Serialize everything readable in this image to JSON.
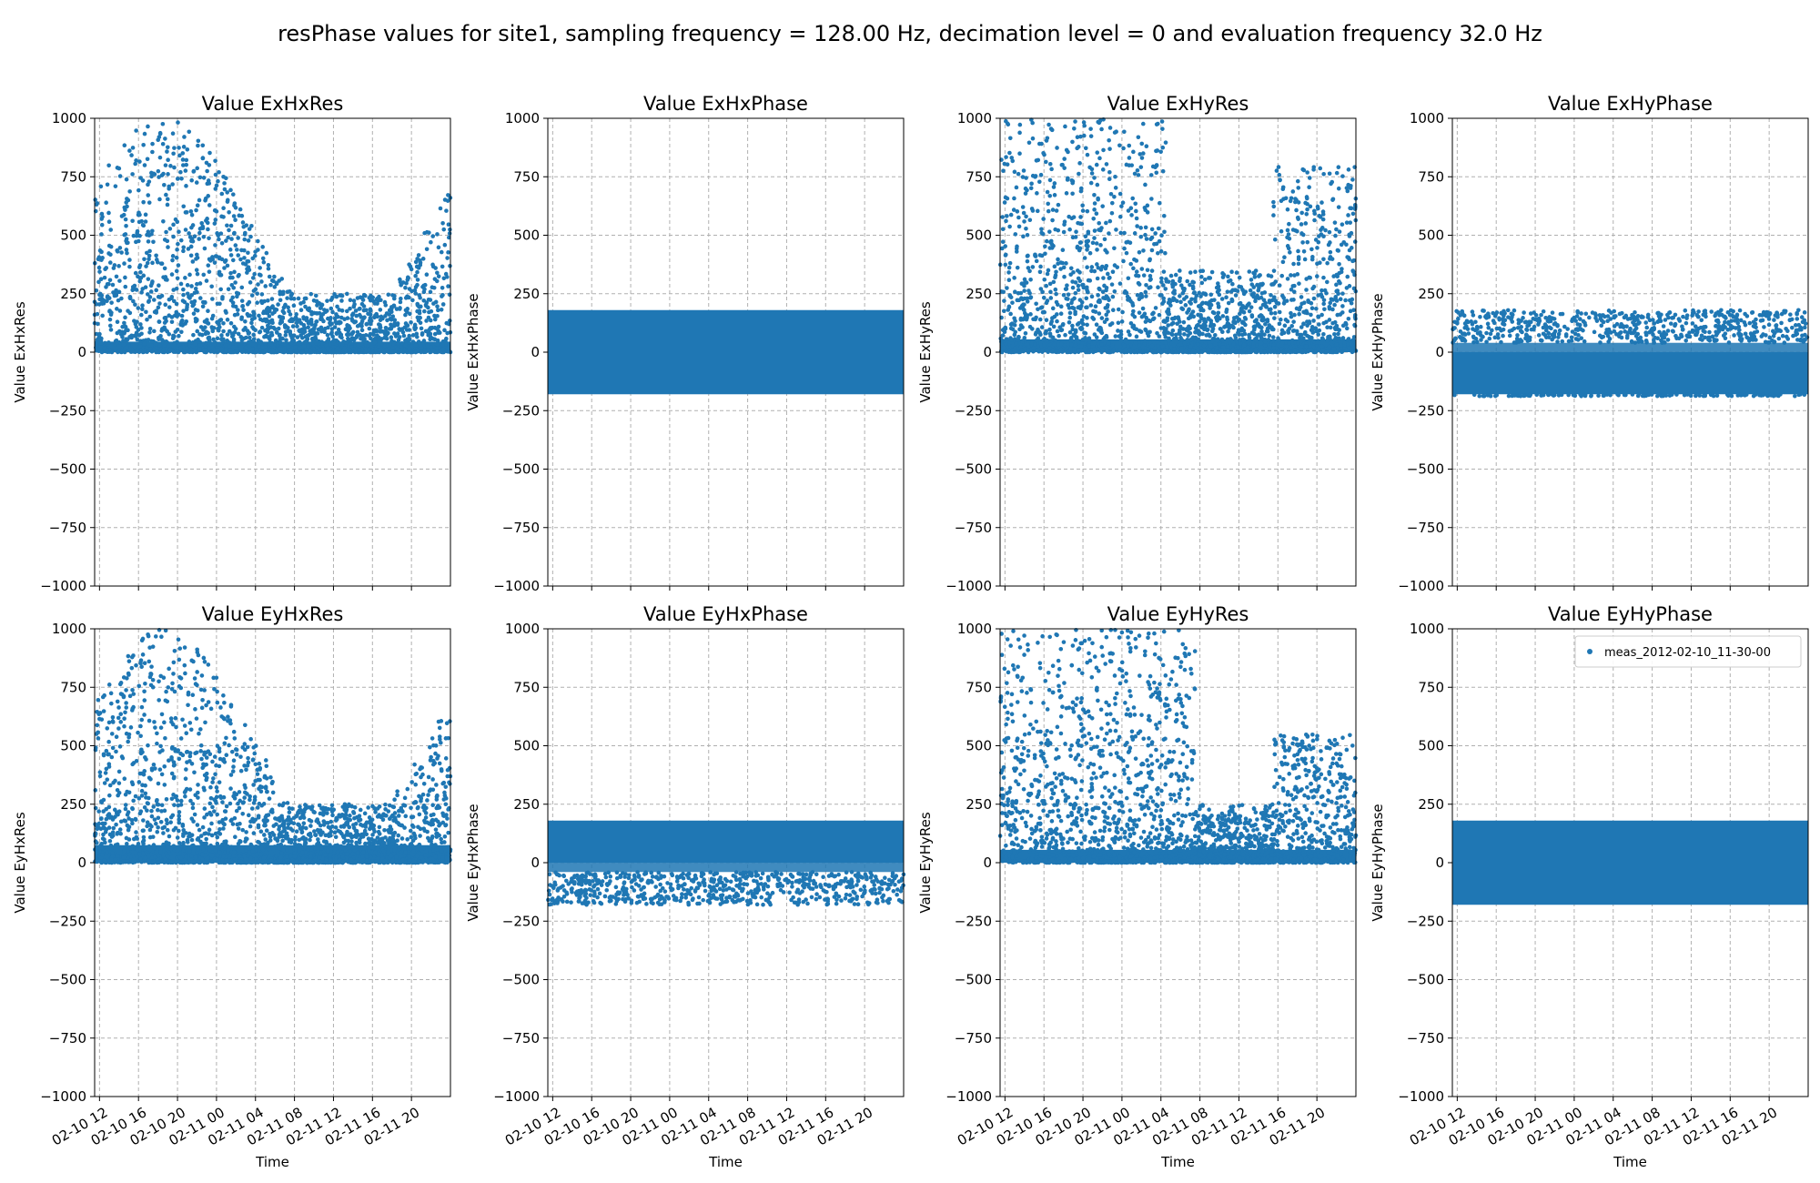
{
  "figure": {
    "title": "resPhase values for site1, sampling frequency = 128.00 Hz, decimation level = 0 and evaluation frequency 32.0 Hz"
  },
  "colors": {
    "series": "#1f77b4",
    "grid": "#b0b0b0"
  },
  "chart_data": [
    {
      "type": "scatter",
      "title": "Value ExHxRes",
      "xlabel": "",
      "ylabel": "Value ExHxRes",
      "ylim": [
        -1000,
        1000
      ],
      "xlim": [
        "2012-02-10 11:30",
        "2012-02-11 23:59"
      ],
      "yticks": [
        "1000",
        "750",
        "500",
        "250",
        "0",
        "−250",
        "−500",
        "−750",
        "−1000"
      ],
      "xticks": [],
      "grid": true,
      "series": [
        {
          "values_summary": "dense band 0–250, scattered up to 1000",
          "min": 0,
          "max": 1000
        }
      ]
    },
    {
      "type": "scatter",
      "title": "Value ExHxPhase",
      "xlabel": "",
      "ylabel": "Value ExHxPhase",
      "ylim": [
        -1000,
        1000
      ],
      "xlim": [
        "2012-02-10 11:30",
        "2012-02-11 23:59"
      ],
      "yticks": [
        "1000",
        "750",
        "500",
        "250",
        "0",
        "−250",
        "−500",
        "−750",
        "−1000"
      ],
      "xticks": [],
      "grid": true,
      "series": [
        {
          "values_summary": "solid band −180 to 180",
          "min": -180,
          "max": 180
        }
      ]
    },
    {
      "type": "scatter",
      "title": "Value ExHyRes",
      "xlabel": "",
      "ylabel": "Value ExHyRes",
      "ylim": [
        -1000,
        1000
      ],
      "xlim": [
        "2012-02-10 11:30",
        "2012-02-11 23:59"
      ],
      "yticks": [
        "1000",
        "750",
        "500",
        "250",
        "0",
        "−250",
        "−500",
        "−750",
        "−1000"
      ],
      "xticks": [],
      "grid": true,
      "series": [
        {
          "values_summary": "dense band 0–250 (higher before 02-11 04), scattered up to 1000",
          "min": 0,
          "max": 1000
        }
      ]
    },
    {
      "type": "scatter",
      "title": "Value ExHyPhase",
      "xlabel": "",
      "ylabel": "Value ExHyPhase",
      "ylim": [
        -1000,
        1000
      ],
      "xlim": [
        "2012-02-10 11:30",
        "2012-02-11 23:59"
      ],
      "yticks": [
        "1000",
        "750",
        "500",
        "250",
        "0",
        "−250",
        "−500",
        "−750",
        "−1000"
      ],
      "xticks": [],
      "grid": true,
      "series": [
        {
          "values_summary": "dense band −180 to 0, sparse 0 to 180",
          "min": -180,
          "max": 180
        }
      ]
    },
    {
      "type": "scatter",
      "title": "Value EyHxRes",
      "xlabel": "Time",
      "ylabel": "Value EyHxRes",
      "ylim": [
        -1000,
        1000
      ],
      "xlim": [
        "2012-02-10 11:30",
        "2012-02-11 23:59"
      ],
      "yticks": [
        "1000",
        "750",
        "500",
        "250",
        "0",
        "−250",
        "−500",
        "−750",
        "−1000"
      ],
      "xticks": [
        "02-10 12",
        "02-10 16",
        "02-10 20",
        "02-11 00",
        "02-11 04",
        "02-11 08",
        "02-11 12",
        "02-11 16",
        "02-11 20"
      ],
      "grid": true,
      "series": [
        {
          "values_summary": "dense band 0–300, scattered up to 1000",
          "min": 0,
          "max": 1000
        }
      ]
    },
    {
      "type": "scatter",
      "title": "Value EyHxPhase",
      "xlabel": "Time",
      "ylabel": "Value EyHxPhase",
      "ylim": [
        -1000,
        1000
      ],
      "xlim": [
        "2012-02-10 11:30",
        "2012-02-11 23:59"
      ],
      "yticks": [
        "1000",
        "750",
        "500",
        "250",
        "0",
        "−250",
        "−500",
        "−750",
        "−1000"
      ],
      "xticks": [
        "02-10 12",
        "02-10 16",
        "02-10 20",
        "02-11 00",
        "02-11 04",
        "02-11 08",
        "02-11 12",
        "02-11 16",
        "02-11 20"
      ],
      "grid": true,
      "series": [
        {
          "values_summary": "dense band 0 to 180, sparse −180 to 0",
          "min": -180,
          "max": 180
        }
      ]
    },
    {
      "type": "scatter",
      "title": "Value EyHyRes",
      "xlabel": "Time",
      "ylabel": "Value EyHyRes",
      "ylim": [
        -1000,
        1000
      ],
      "xlim": [
        "2012-02-10 11:30",
        "2012-02-11 23:59"
      ],
      "yticks": [
        "1000",
        "750",
        "500",
        "250",
        "0",
        "−250",
        "−500",
        "−750",
        "−1000"
      ],
      "xticks": [
        "02-10 12",
        "02-10 16",
        "02-10 20",
        "02-11 00",
        "02-11 04",
        "02-11 08",
        "02-11 12",
        "02-11 16",
        "02-11 20"
      ],
      "grid": true,
      "series": [
        {
          "values_summary": "dense band 0–300 before 02-11 08, lower after, scattered up to 1000",
          "min": 0,
          "max": 1000
        }
      ]
    },
    {
      "type": "scatter",
      "title": "Value EyHyPhase",
      "xlabel": "Time",
      "ylabel": "Value EyHyPhase",
      "ylim": [
        -1000,
        1000
      ],
      "xlim": [
        "2012-02-10 11:30",
        "2012-02-11 23:59"
      ],
      "yticks": [
        "1000",
        "750",
        "500",
        "250",
        "0",
        "−250",
        "−500",
        "−750",
        "−1000"
      ],
      "xticks": [
        "02-10 12",
        "02-10 16",
        "02-10 20",
        "02-11 00",
        "02-11 04",
        "02-11 08",
        "02-11 12",
        "02-11 16",
        "02-11 20"
      ],
      "grid": true,
      "legend": {
        "label": "meas_2012-02-10_11-30-00",
        "placement": "top-right"
      },
      "series": [
        {
          "name": "meas_2012-02-10_11-30-00",
          "values_summary": "solid band −180 to 180",
          "min": -180,
          "max": 180
        }
      ]
    }
  ]
}
